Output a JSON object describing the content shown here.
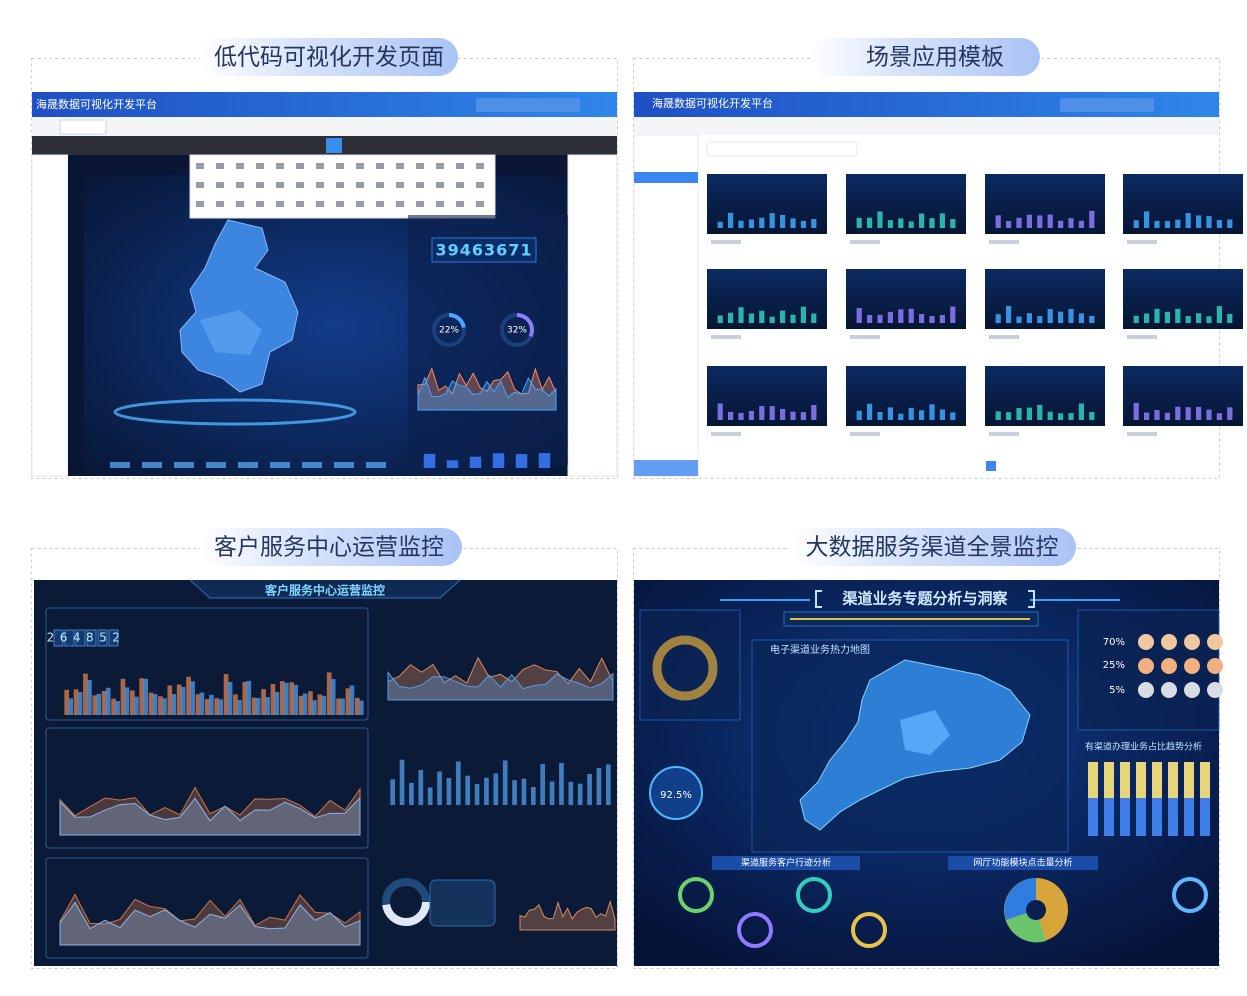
{
  "panels": [
    {
      "title": "低代码可视化开发页面",
      "platform": "海晟数据可视化开发平台",
      "counter": "39463671",
      "gauges": [
        "22%",
        "32%"
      ]
    },
    {
      "title": "场景应用模板",
      "platform": "海晟数据可视化开发平台"
    },
    {
      "title": "客户服务中心运营监控",
      "header": "客户服务中心运营监控",
      "counter": "264852"
    },
    {
      "title": "大数据服务渠道全景监控",
      "header": "渠道业务专题分析与洞察",
      "map_title": "电子渠道业务热力地图",
      "ring": "92.5%",
      "shares": [
        "70%",
        "25%",
        "5%"
      ],
      "sections": [
        "渠道服务客户行迹分析",
        "网厅功能模块点击量分析",
        "有渠道办理业务占比趋势分析"
      ]
    }
  ]
}
